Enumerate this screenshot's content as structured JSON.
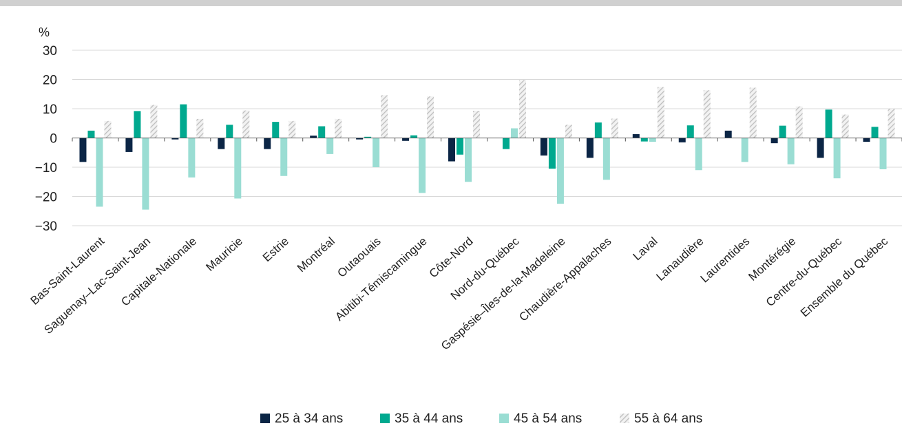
{
  "chart_data": {
    "type": "bar",
    "ylabel": "%",
    "ylim": [
      -30,
      30
    ],
    "yticks": [
      30,
      20,
      10,
      0,
      -10,
      -20,
      -30
    ],
    "ytick_labels": [
      "30",
      "20",
      "10",
      "0",
      "−10",
      "−20",
      "−30"
    ],
    "grid": true,
    "legend_position": "bottom",
    "categories": [
      "Bas-Saint-Laurent",
      "Saguenay–Lac-Saint-Jean",
      "Capitale-Nationale",
      "Mauricie",
      "Estrie",
      "Montréal",
      "Outaouais",
      "Abitibi-Témiscamingue",
      "Côte-Nord",
      "Nord-du-Québec",
      "Gaspésie–Îles-de-la-Madeleine",
      "Chaudière-Appalaches",
      "Laval",
      "Lanaudière",
      "Laurentides",
      "Montérégie",
      "Centre-du-Québec",
      "Ensemble du Québec"
    ],
    "series": [
      {
        "name": "25 à 34 ans",
        "color": "#0b2545",
        "pattern": "solid",
        "values": [
          -8.2,
          -4.8,
          -0.5,
          -3.8,
          -3.8,
          0.8,
          -0.5,
          -1.0,
          -8.0,
          0,
          -6.0,
          -6.8,
          1.3,
          -1.5,
          2.5,
          -1.8,
          -6.8,
          -1.3
        ]
      },
      {
        "name": "35 à 44 ans",
        "color": "#00a98f",
        "pattern": "solid",
        "values": [
          2.5,
          9.2,
          11.5,
          4.5,
          5.5,
          4.0,
          0.4,
          0.9,
          -5.7,
          -3.8,
          -10.5,
          5.3,
          -1.2,
          4.3,
          0,
          4.2,
          9.7,
          3.8
        ]
      },
      {
        "name": "45 à 54 ans",
        "color": "#9addd3",
        "pattern": "solid",
        "values": [
          -23.5,
          -24.5,
          -13.5,
          -20.7,
          -13.0,
          -5.5,
          -10.0,
          -18.8,
          -15.0,
          3.3,
          -22.5,
          -14.3,
          -1.3,
          -11.0,
          -8.2,
          -9.0,
          -13.8,
          -10.7
        ]
      },
      {
        "name": "55 à 64 ans",
        "color": "#c8c8c8",
        "pattern": "hatch",
        "values": [
          5.8,
          11.3,
          6.5,
          9.4,
          5.8,
          6.5,
          14.6,
          14.2,
          9.3,
          19.8,
          4.5,
          6.6,
          17.4,
          16.3,
          17.2,
          10.8,
          8.0,
          10.0
        ]
      }
    ]
  }
}
